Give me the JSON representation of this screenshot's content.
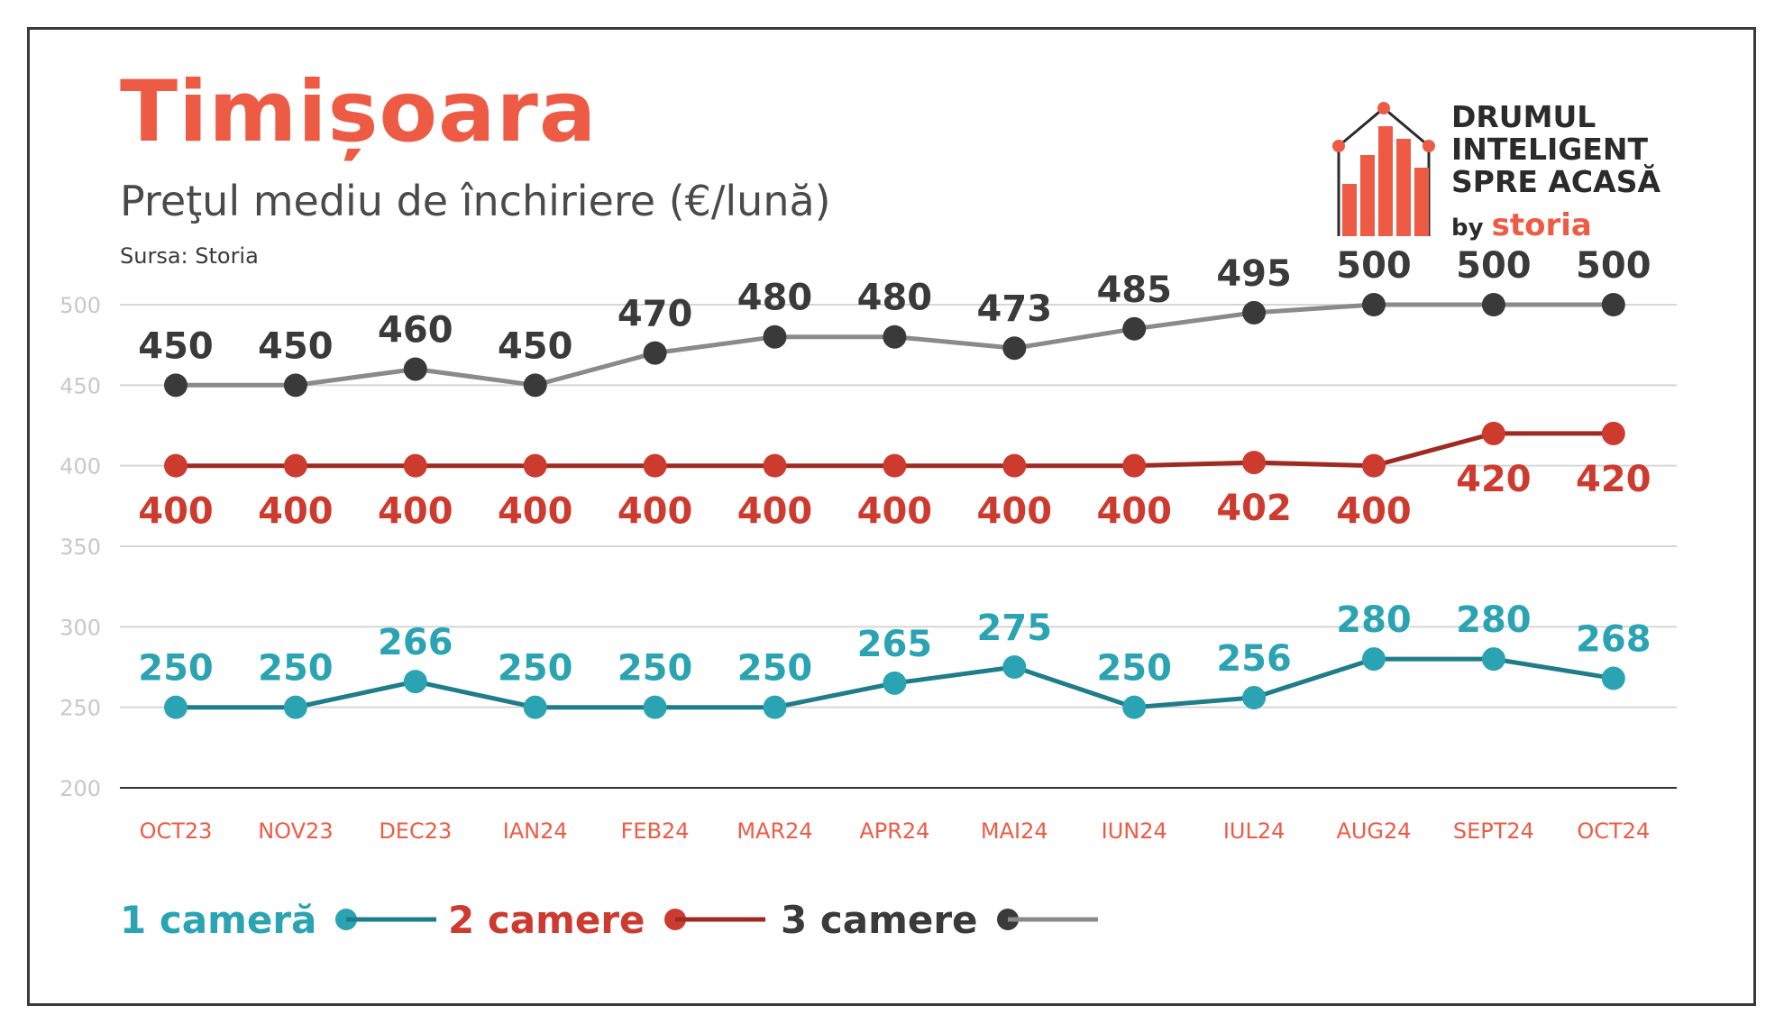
{
  "header": {
    "title": "Timișoara",
    "subtitle": "Preţul mediu de închiriere (€/lună)",
    "source": "Sursa: Storia"
  },
  "logo": {
    "line1": "DRUMUL",
    "line2": "INTELIGENT",
    "line3": "SPRE ACASĂ",
    "by": "by",
    "brand": "storia"
  },
  "colors": {
    "title": "#ee5b45",
    "series1": "#2aa3b3",
    "series2": "#cd3b2f",
    "series3": "#3a3a3a",
    "series3_line": "#8a8a8a",
    "tick_x": "#ee5b45",
    "tick_y": "#c8c8c8",
    "grid": "#d6d6d6"
  },
  "legend": [
    {
      "label": "1 cameră",
      "color": "#2aa3b3"
    },
    {
      "label": "2 camere",
      "color": "#cd3b2f"
    },
    {
      "label": "3 camere",
      "color": "#3a3a3a"
    }
  ],
  "chart_data": {
    "type": "line",
    "title": "Preţul mediu de închiriere (€/lună)",
    "categories": [
      "OCT23",
      "NOV23",
      "DEC23",
      "IAN24",
      "FEB24",
      "MAR24",
      "APR24",
      "MAI24",
      "IUN24",
      "IUL24",
      "AUG24",
      "SEPT24",
      "OCT24"
    ],
    "ylim": [
      200,
      500
    ],
    "yticks": [
      200,
      250,
      300,
      350,
      400,
      450,
      500
    ],
    "grid": true,
    "legend_position": "bottom-left",
    "series": [
      {
        "name": "1 cameră",
        "values": [
          250,
          250,
          266,
          250,
          250,
          250,
          265,
          275,
          250,
          256,
          280,
          280,
          268
        ]
      },
      {
        "name": "2 camere",
        "values": [
          400,
          400,
          400,
          400,
          400,
          400,
          400,
          400,
          400,
          402,
          400,
          420,
          420
        ]
      },
      {
        "name": "3 camere",
        "values": [
          450,
          450,
          460,
          450,
          470,
          480,
          480,
          473,
          485,
          495,
          500,
          500,
          500
        ]
      }
    ]
  }
}
